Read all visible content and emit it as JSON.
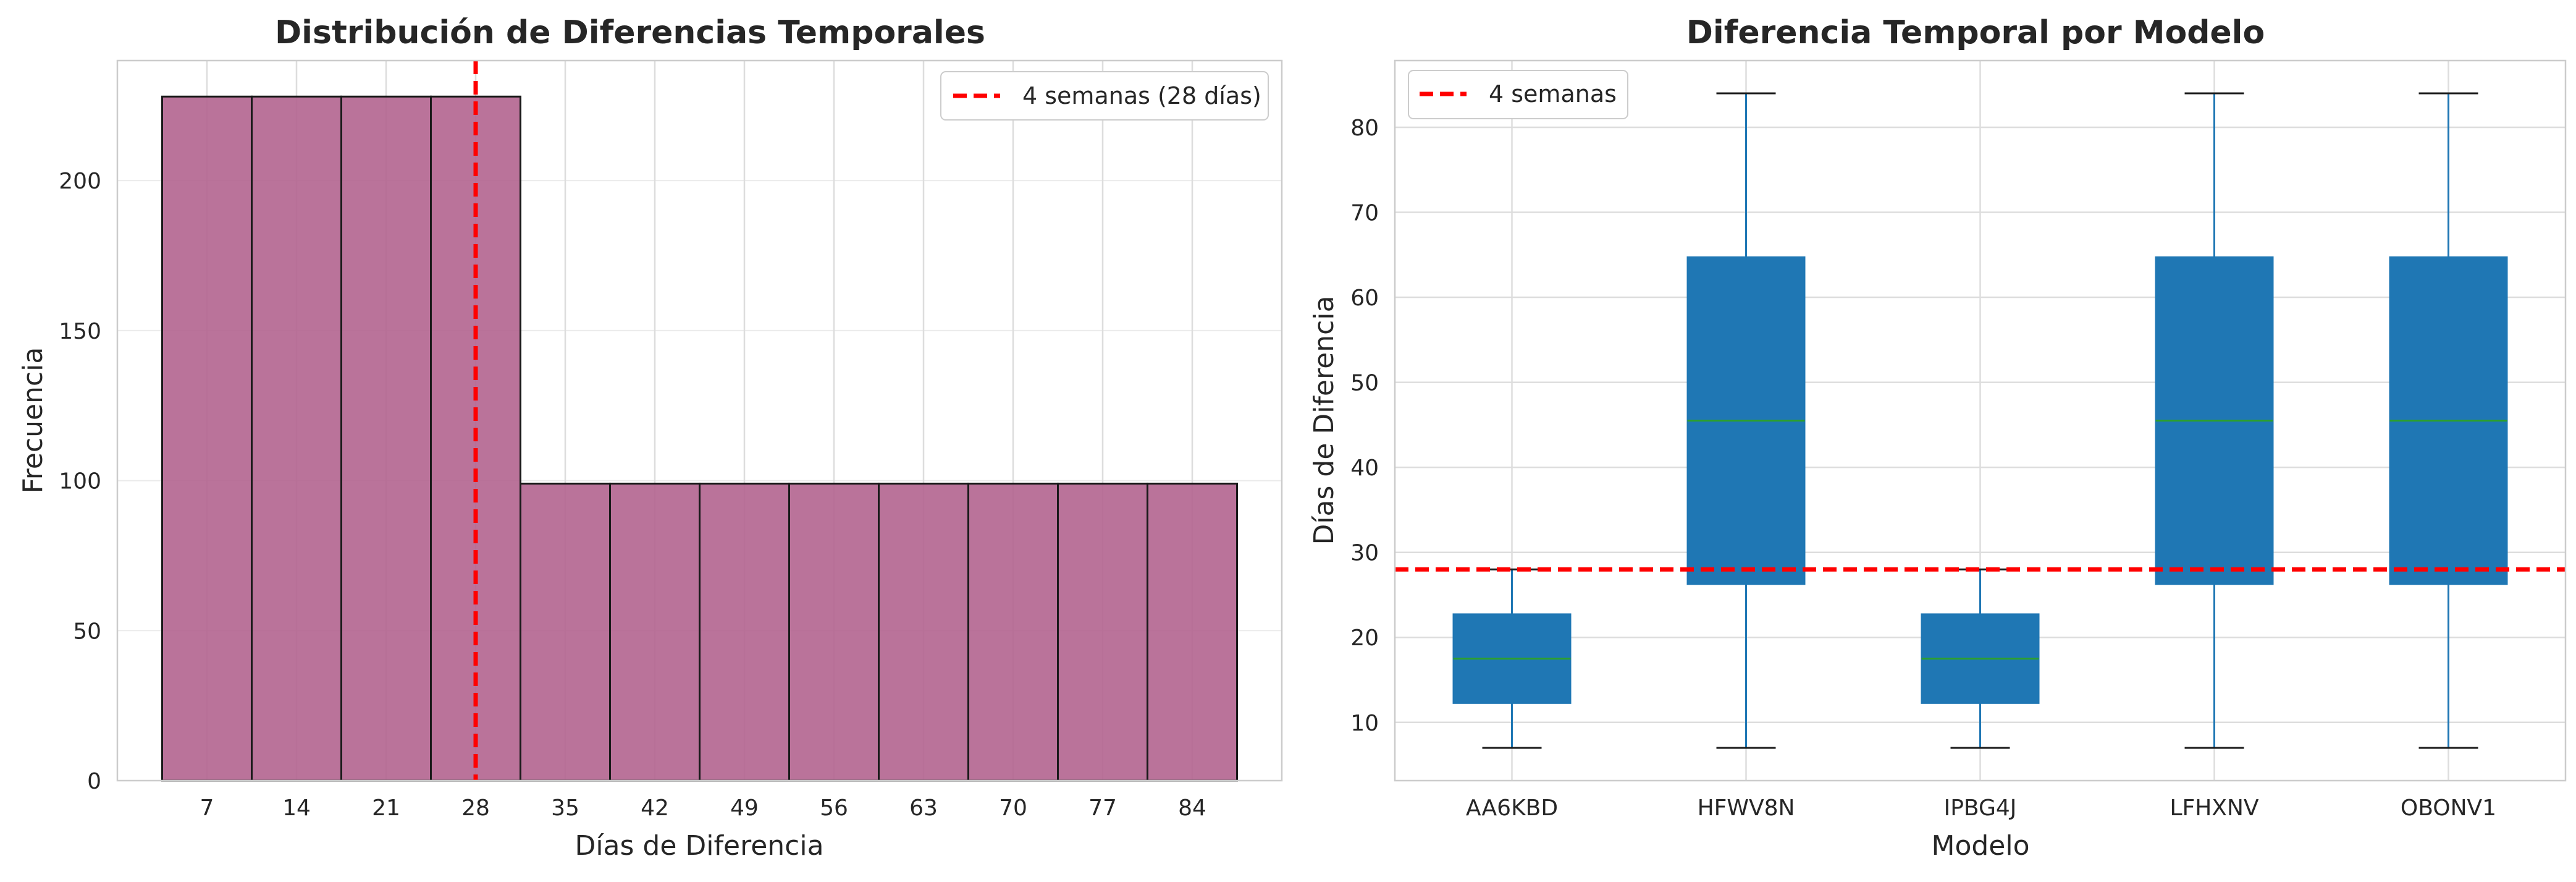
{
  "chart_data": [
    {
      "type": "bar",
      "title": "Distribución de Diferencias Temporales",
      "xlabel": "Días de Diferencia",
      "ylabel": "Frecuencia",
      "categories": [
        "7",
        "14",
        "21",
        "28",
        "35",
        "42",
        "49",
        "56",
        "63",
        "70",
        "77",
        "84"
      ],
      "values": [
        228,
        228,
        228,
        228,
        99,
        99,
        99,
        99,
        99,
        99,
        99,
        99
      ],
      "xlim": [
        0,
        91
      ],
      "ylim": [
        0,
        240
      ],
      "yticks": [
        0,
        50,
        100,
        150,
        200
      ],
      "reference_line": {
        "orientation": "vertical",
        "value": 28,
        "label": "4 semanas (28 días)",
        "color": "#ff0000"
      },
      "bar_color": "#b3648f",
      "legend": "top-right",
      "grid": true
    },
    {
      "type": "box",
      "title": "Diferencia Temporal por Modelo",
      "xlabel": "Modelo",
      "ylabel": "Días de Diferencia",
      "categories": [
        "AA6KBD",
        "HFWV8N",
        "IPBG4J",
        "LFHXNV",
        "OBONV1"
      ],
      "boxes": [
        {
          "whisker_low": 7,
          "q1": 12.25,
          "median": 17.5,
          "q3": 22.75,
          "whisker_high": 28
        },
        {
          "whisker_low": 7,
          "q1": 26.25,
          "median": 45.5,
          "q3": 64.75,
          "whisker_high": 84
        },
        {
          "whisker_low": 7,
          "q1": 12.25,
          "median": 17.5,
          "q3": 22.75,
          "whisker_high": 28
        },
        {
          "whisker_low": 7,
          "q1": 26.25,
          "median": 45.5,
          "q3": 64.75,
          "whisker_high": 84
        },
        {
          "whisker_low": 7,
          "q1": 26.25,
          "median": 45.5,
          "q3": 64.75,
          "whisker_high": 84
        }
      ],
      "ylim": [
        3.15,
        87.85
      ],
      "yticks": [
        10,
        20,
        30,
        40,
        50,
        60,
        70,
        80
      ],
      "reference_line": {
        "orientation": "horizontal",
        "value": 28,
        "label": "4 semanas",
        "color": "#ff0000"
      },
      "box_color": "#1f77b4",
      "median_color": "#2ca02c",
      "legend": "top-left",
      "grid": true
    }
  ]
}
